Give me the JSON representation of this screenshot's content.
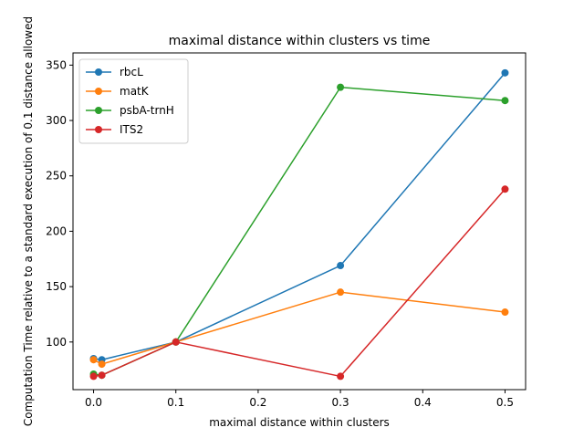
{
  "chart_data": {
    "type": "line",
    "title": "maximal distance within clusters vs time",
    "xlabel": "maximal distance within clusters",
    "ylabel": "Computation Time relative to a standard execution of 0.1 distance allowed",
    "xlim": [
      -0.025,
      0.525
    ],
    "ylim": [
      57,
      361
    ],
    "xticks": [
      0.0,
      0.1,
      0.2,
      0.3,
      0.4,
      0.5
    ],
    "xtick_labels": [
      "0.0",
      "0.1",
      "0.2",
      "0.3",
      "0.4",
      "0.5"
    ],
    "yticks": [
      100,
      150,
      200,
      250,
      300,
      350
    ],
    "ytick_labels": [
      "100",
      "150",
      "200",
      "250",
      "300",
      "350"
    ],
    "grid": false,
    "legend_position": "top-left",
    "x": [
      0.0,
      0.01,
      0.1,
      0.3,
      0.5
    ],
    "series": [
      {
        "name": "rbcL",
        "color": "#1f77b4",
        "values": [
          85,
          84,
          100,
          169,
          343
        ]
      },
      {
        "name": "matK",
        "color": "#ff7f0e",
        "values": [
          84,
          80,
          100,
          145,
          127
        ]
      },
      {
        "name": "psbA-trnH",
        "color": "#2ca02c",
        "values": [
          71,
          70,
          100,
          330,
          318
        ]
      },
      {
        "name": "ITS2",
        "color": "#d62728",
        "values": [
          69,
          70,
          100,
          69,
          238
        ]
      }
    ]
  }
}
